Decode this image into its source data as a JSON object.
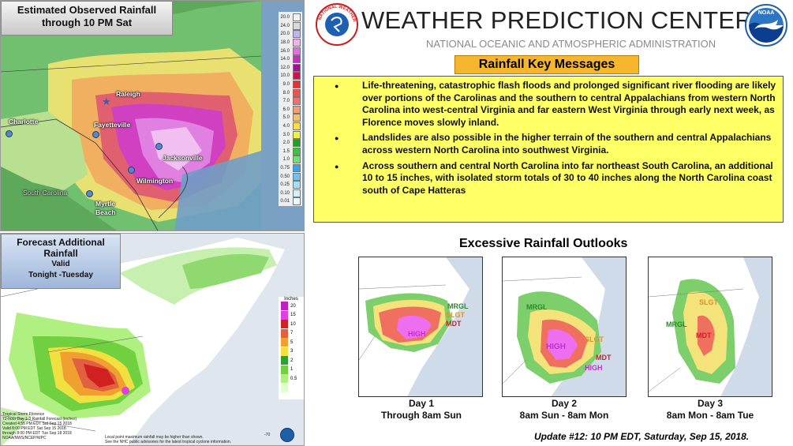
{
  "header": {
    "title": "WEATHER PREDICTION CENTER",
    "subtitle": "NATIONAL OCEANIC AND ATMOSPHERIC ADMINISTRATION",
    "nws_logo_text": "NATIONAL WEATHER SERVICE",
    "noaa_logo_text": "NOAA"
  },
  "observed": {
    "label_line1": "Estimated Observed Rainfall",
    "label_line2": "through 10 PM Sat",
    "cities": [
      "Raleigh",
      "Charlotte",
      "Fayetteville",
      "Jacksonville",
      "Wilmington",
      "South Carolina",
      "Myrtle Beach"
    ],
    "legend": [
      {
        "value": "20.0",
        "color": "#f2f2f2"
      },
      {
        "value": "24.0",
        "color": "#d9d9d9"
      },
      {
        "value": "20.0",
        "color": "#b9b9f0"
      },
      {
        "value": "18.0",
        "color": "#f0b0f0"
      },
      {
        "value": "16.0",
        "color": "#e070e0"
      },
      {
        "value": "14.0",
        "color": "#c030c0"
      },
      {
        "value": "12.0",
        "color": "#a01090"
      },
      {
        "value": "10.0",
        "color": "#d01050"
      },
      {
        "value": "9.0",
        "color": "#e83030"
      },
      {
        "value": "8.0",
        "color": "#f05050"
      },
      {
        "value": "7.0",
        "color": "#f07070"
      },
      {
        "value": "6.0",
        "color": "#f0a070"
      },
      {
        "value": "5.0",
        "color": "#f0c070"
      },
      {
        "value": "4.0",
        "color": "#f8e040"
      },
      {
        "value": "3.0",
        "color": "#f0f040"
      },
      {
        "value": "2.0",
        "color": "#20a020"
      },
      {
        "value": "1.5",
        "color": "#40c040"
      },
      {
        "value": "1.0",
        "color": "#70e070"
      },
      {
        "value": "0.75",
        "color": "#40a0e0"
      },
      {
        "value": "0.50",
        "color": "#70c0f0"
      },
      {
        "value": "0.25",
        "color": "#a0e0f0"
      },
      {
        "value": "0.10",
        "color": "#d0f0f8"
      },
      {
        "value": "0.01",
        "color": "#e8f8ff"
      }
    ]
  },
  "forecast": {
    "label_line1": "Forecast Additional",
    "label_line2": "Rainfall",
    "label_line3": "Valid",
    "label_line4": "Tonight  -Tuesday",
    "legend_title": "Inches",
    "legend": [
      {
        "value": "20",
        "color": "#c020c0"
      },
      {
        "value": "15",
        "color": "#e040e0"
      },
      {
        "value": "10",
        "color": "#d02020"
      },
      {
        "value": "7",
        "color": "#e06040"
      },
      {
        "value": "5",
        "color": "#f0a030"
      },
      {
        "value": "3",
        "color": "#f0e040"
      },
      {
        "value": "2",
        "color": "#30a030"
      },
      {
        "value": "1",
        "color": "#70d040"
      },
      {
        "value": "0.5",
        "color": "#b0f080"
      },
      {
        "value": "",
        "color": "#e0ffd0"
      }
    ],
    "fine_print": [
      "Tropical Storm Florence",
      "72-hour Day 1-3 Rainfall Forecast (inches)",
      "Created 4:55 PM EDT Sat Sep 15 2018",
      "Valid 8:00 PM EDT Sat Sep 15 2018",
      "through 8:00 PM EDT Tue Sep 18 2018",
      "NOAA/NWS/NCEP/WPC"
    ],
    "note1": "Local point maximum rainfall may be higher than shown.",
    "note2": "See the NHC public advisories for the latest tropical cyclone information.",
    "corner_value": "-70"
  },
  "key_messages": {
    "title": "Rainfall Key Messages",
    "items": [
      "Life-threatening, catastrophic flash floods and prolonged significant river flooding are likely over portions of the Carolinas and the southern to central Appalachians from western North Carolina into west-central Virginia and far eastern West Virginia through early next week, as Florence moves slowly inland.",
      "Landslides are also possible in the higher terrain of the southern and central Appalachians across western North Carolina into southwest Virginia.",
      "Across southern and central North Carolina into far northeast South Carolina, an additional 10 to 15 inches, with isolated storm totals of 30 to 40 inches along the North Carolina coast south of Cape Hatteras"
    ]
  },
  "outlooks": {
    "title": "Excessive Rainfall Outlooks",
    "day1": {
      "label": "Day 1",
      "valid": "Through 8am Sun",
      "cats": [
        "MRGL",
        "SLGT",
        "MDT",
        "HIGH"
      ]
    },
    "day2": {
      "label": "Day 2",
      "valid": "8am Sun - 8am Mon",
      "cats": [
        "MRGL",
        "HIGH",
        "SLGT",
        "MDT",
        "HIGH"
      ]
    },
    "day3": {
      "label": "Day 3",
      "valid": "8am Mon - 8am Tue",
      "cats": [
        "SLGT",
        "MRGL",
        "MDT"
      ]
    }
  },
  "update": "Update #12: 10 PM EDT, Saturday, Sep 15, 2018."
}
